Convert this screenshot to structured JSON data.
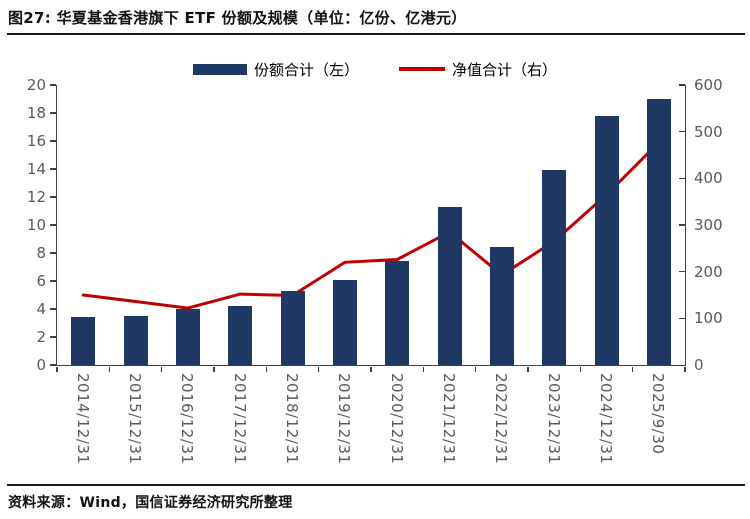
{
  "title": "图27: 华夏基金香港旗下 ETF 份额及规模（单位：亿份、亿港元）",
  "footer": "资料来源：Wind，国信证券经济研究所整理",
  "colors": {
    "bar_series": "#1f3864",
    "line_series": "#c00000",
    "axis": "#404040",
    "tick_text": "#595959"
  },
  "legend": [
    {
      "label": "份额合计（左）",
      "type": "bar",
      "color": "#1f3864"
    },
    {
      "label": "净值合计（右）",
      "type": "line",
      "color": "#c00000"
    }
  ],
  "chart_data": {
    "type": "bar",
    "subtype": "bar+line dual-axis",
    "title": "华夏基金香港旗下 ETF 份额及规模",
    "units": "亿份、亿港元",
    "categories": [
      "2014/12/31",
      "2015/12/31",
      "2016/12/31",
      "2017/12/31",
      "2018/12/31",
      "2019/12/31",
      "2020/12/31",
      "2021/12/31",
      "2022/12/31",
      "2023/12/31",
      "2024/12/31",
      "2025/9/30"
    ],
    "series": [
      {
        "name": "份额合计（左）",
        "type": "bar",
        "axis": "left",
        "color": "#1f3864",
        "values": [
          3.4,
          3.5,
          4.0,
          4.2,
          5.3,
          6.1,
          7.4,
          11.3,
          8.4,
          13.9,
          17.8,
          19.0
        ]
      },
      {
        "name": "净值合计（右）",
        "type": "line",
        "axis": "right",
        "color": "#c00000",
        "values": [
          150,
          136,
          122,
          152,
          149,
          220,
          226,
          285,
          193,
          265,
          365,
          477
        ]
      }
    ],
    "left_axis": {
      "min": 0,
      "max": 20,
      "step": 2,
      "ticks": [
        0,
        2,
        4,
        6,
        8,
        10,
        12,
        14,
        16,
        18,
        20
      ]
    },
    "right_axis": {
      "min": 0,
      "max": 600,
      "step": 100,
      "ticks": [
        0,
        100,
        200,
        300,
        400,
        500,
        600
      ]
    },
    "grid": false,
    "legend_position": "top"
  }
}
